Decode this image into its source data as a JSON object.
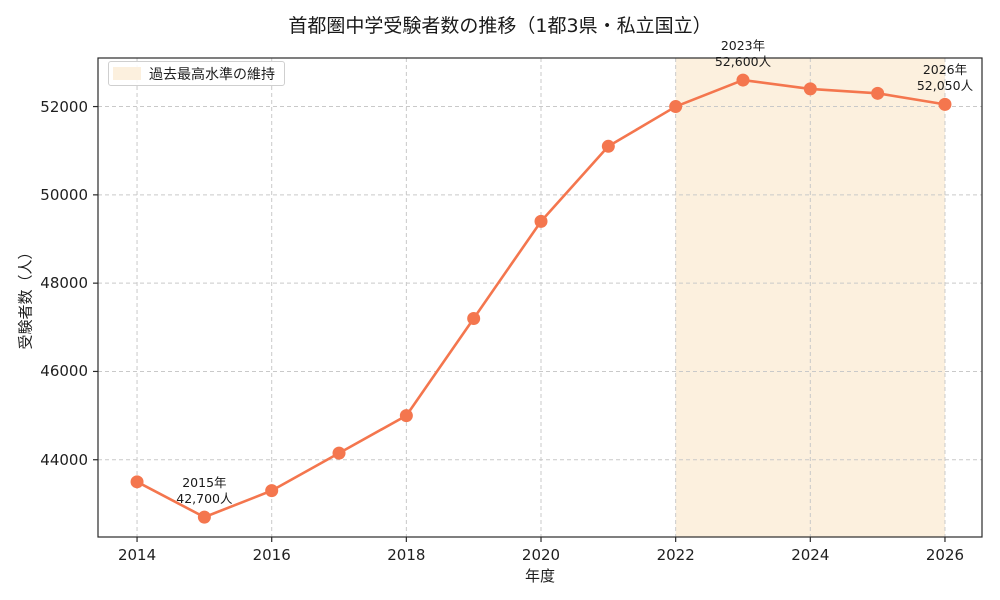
{
  "chart_data": {
    "type": "line",
    "title": "首都圏中学受験者数の推移（1都3県・私立国立）",
    "xlabel": "年度",
    "ylabel": "受験者数（人）",
    "series": [
      {
        "name": "受験者数",
        "x": [
          2014,
          2015,
          2016,
          2017,
          2018,
          2019,
          2020,
          2021,
          2022,
          2023,
          2024,
          2025,
          2026
        ],
        "values": [
          43500,
          42700,
          43300,
          44150,
          45000,
          47200,
          49400,
          51100,
          52000,
          52600,
          52400,
          52300,
          52050
        ]
      }
    ],
    "xlim": [
      2013.42,
      2026.55
    ],
    "ylim": [
      42250,
      53100
    ],
    "xticks": [
      2014,
      2016,
      2018,
      2020,
      2022,
      2024,
      2026
    ],
    "yticks": [
      44000,
      46000,
      48000,
      50000,
      52000
    ],
    "grid": true,
    "grid_style": "dashed",
    "legend_position": "upper-left",
    "band": {
      "label": "過去最高水準の維持",
      "from_x": 2022,
      "to_x": 2026
    },
    "annotations": [
      {
        "x": 2015,
        "y": 42700,
        "lines": [
          "2015年",
          "42,700人"
        ]
      },
      {
        "x": 2023,
        "y": 52600,
        "lines": [
          "2023年",
          "52,600人"
        ]
      },
      {
        "x": 2026,
        "y": 52050,
        "lines": [
          "2026年",
          "52,050人"
        ]
      }
    ],
    "colors": {
      "line": "#f4764e",
      "marker": "#f4764e",
      "band": "#fcf0de",
      "grid": "#c9c9c9",
      "spine": "#2a2a2a",
      "text": "#1f1f1f"
    }
  }
}
